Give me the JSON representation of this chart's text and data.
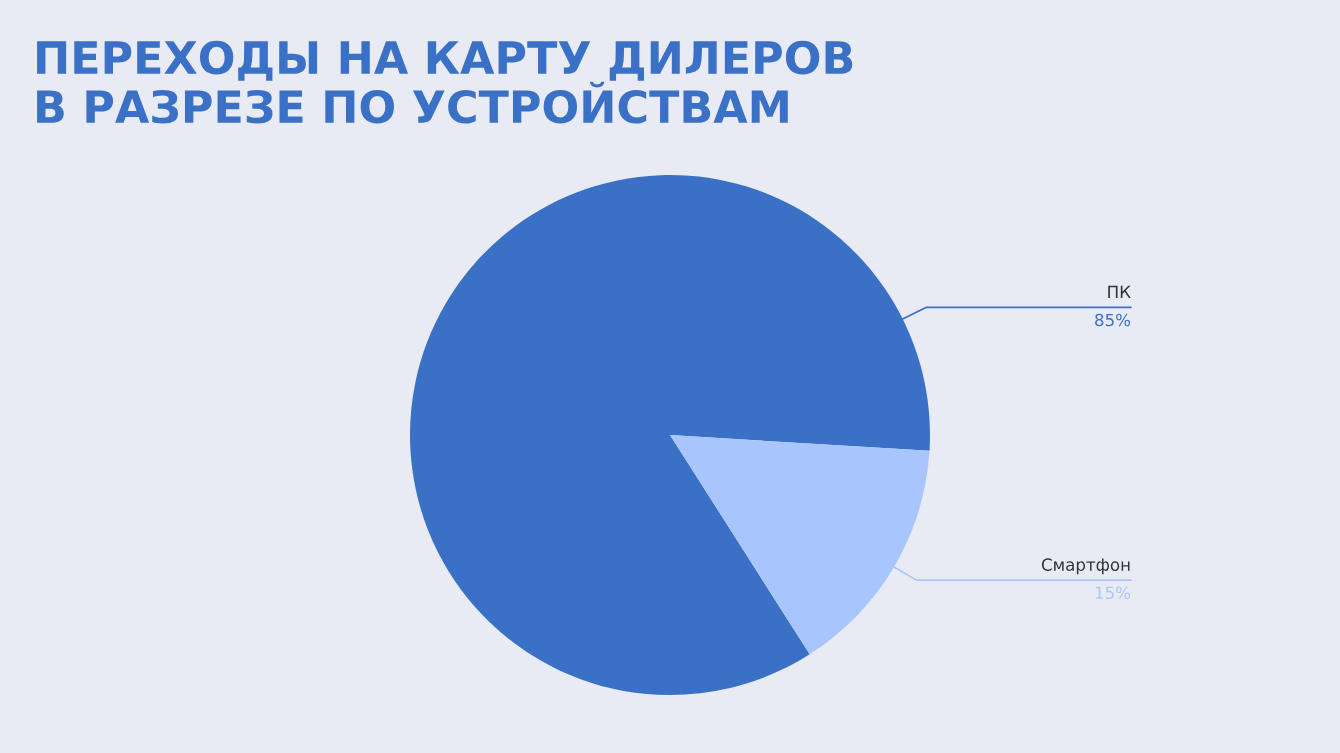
{
  "chart_data": {
    "type": "pie",
    "title": "ПЕРЕХОДЫ НА КАРТУ ДИЛЕРОВ\nВ РАЗРЕЗЕ ПО УСТРОЙСТВАМ",
    "categories": [
      "ПК",
      "Смартфон"
    ],
    "values": [
      85,
      15
    ],
    "colors": [
      "#3a70c6",
      "#a8c6fd"
    ],
    "value_labels": [
      "85%",
      "15%"
    ]
  }
}
